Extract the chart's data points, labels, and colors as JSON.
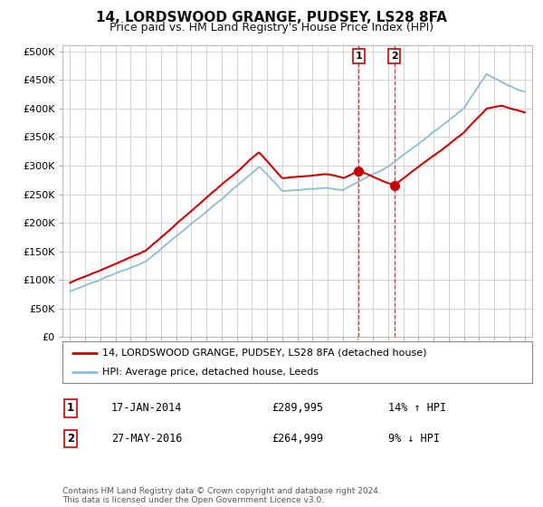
{
  "title": "14, LORDSWOOD GRANGE, PUDSEY, LS28 8FA",
  "subtitle": "Price paid vs. HM Land Registry's House Price Index (HPI)",
  "ytick_values": [
    0,
    50000,
    100000,
    150000,
    200000,
    250000,
    300000,
    350000,
    400000,
    450000,
    500000
  ],
  "legend_line1": "14, LORDSWOOD GRANGE, PUDSEY, LS28 8FA (detached house)",
  "legend_line2": "HPI: Average price, detached house, Leeds",
  "sale1_date": "17-JAN-2014",
  "sale1_price": "£289,995",
  "sale1_hpi": "14% ↑ HPI",
  "sale1_year": 2014.04,
  "sale1_value": 289995,
  "sale2_date": "27-MAY-2016",
  "sale2_price": "£264,999",
  "sale2_hpi": "9% ↓ HPI",
  "sale2_year": 2016.4,
  "sale2_value": 264999,
  "footer": "Contains HM Land Registry data © Crown copyright and database right 2024.\nThis data is licensed under the Open Government Licence v3.0.",
  "line_color_red": "#cc0000",
  "line_color_blue": "#8bbcda",
  "bg_color": "#ffffff",
  "grid_color": "#cccccc"
}
